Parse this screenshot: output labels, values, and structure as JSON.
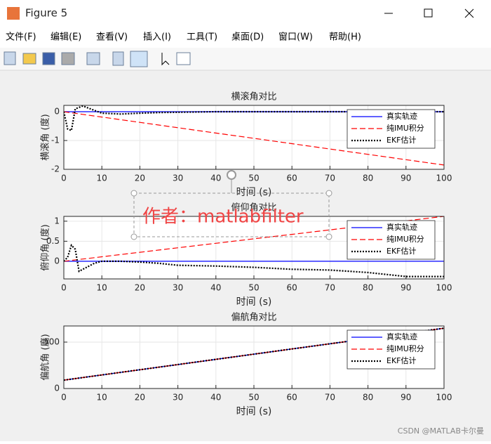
{
  "window": {
    "title": "Figure 5"
  },
  "menu": [
    "文件(F)",
    "编辑(E)",
    "查看(V)",
    "插入(I)",
    "工具(T)",
    "桌面(D)",
    "窗口(W)",
    "帮助(H)"
  ],
  "watermark": "作者：matlabfilter",
  "credit": "CSDN @MATLAB卡尔曼",
  "chart_data": [
    {
      "type": "line",
      "title": "横滚角对比",
      "xlabel": "时间 (s)",
      "ylabel": "横滚角 (度)",
      "grid": true,
      "legend": "northeast",
      "x": [
        0,
        1,
        2,
        3,
        4,
        5,
        6,
        8,
        10,
        15,
        20,
        25,
        30,
        40,
        50,
        60,
        70,
        80,
        90,
        100
      ],
      "xlim": [
        0,
        100
      ],
      "xticks": [
        0,
        10,
        20,
        30,
        40,
        50,
        60,
        70,
        80,
        90,
        100
      ],
      "ylim": [
        -2,
        0.22
      ],
      "yticks": [
        -2,
        -1,
        0
      ],
      "series": [
        {
          "name": "真实轨迹",
          "color": "#0000ff",
          "dash": "solid",
          "values": [
            0,
            0,
            0,
            0,
            0,
            0,
            0,
            0,
            0,
            0,
            0,
            0,
            0,
            0,
            0,
            0,
            0,
            0,
            0,
            0
          ]
        },
        {
          "name": "纯IMU积分",
          "color": "#ff0000",
          "dash": "dashed",
          "values": [
            0,
            -0.0185,
            -0.037,
            -0.0555,
            -0.074,
            -0.0925,
            -0.111,
            -0.148,
            -0.185,
            -0.2775,
            -0.37,
            -0.4625,
            -0.555,
            -0.74,
            -0.925,
            -1.11,
            -1.295,
            -1.48,
            -1.665,
            -1.85
          ]
        },
        {
          "name": "EKF估计",
          "color": "#000000",
          "dash": "dotted",
          "values": [
            0,
            -0.6,
            -0.65,
            0.1,
            0.15,
            0.2,
            0.15,
            0.05,
            -0.05,
            -0.08,
            -0.05,
            -0.03,
            -0.02,
            0,
            0,
            0,
            0,
            0,
            0,
            0
          ]
        }
      ]
    },
    {
      "type": "line",
      "title": "俯仰角对比",
      "xlabel": "时间 (s)",
      "ylabel": "俯仰角 (度)",
      "grid": true,
      "legend": "northeast",
      "x": [
        0,
        1,
        2,
        3,
        4,
        5,
        6,
        8,
        10,
        15,
        20,
        25,
        30,
        40,
        50,
        60,
        70,
        80,
        90,
        100
      ],
      "xlim": [
        0,
        100
      ],
      "xticks": [
        0,
        10,
        20,
        30,
        40,
        50,
        60,
        70,
        80,
        90,
        100
      ],
      "ylim": [
        -0.44,
        1.12
      ],
      "yticks": [
        0,
        0.5,
        1
      ],
      "series": [
        {
          "name": "真实轨迹",
          "color": "#0000ff",
          "dash": "solid",
          "values": [
            0,
            0,
            0,
            0,
            0,
            0,
            0,
            0,
            0,
            0,
            0,
            0,
            0,
            0,
            0,
            0,
            0,
            0,
            0,
            0
          ]
        },
        {
          "name": "纯IMU积分",
          "color": "#ff0000",
          "dash": "dashed",
          "values": [
            0,
            0.0112,
            0.0224,
            0.0336,
            0.0448,
            0.056,
            0.0672,
            0.0896,
            0.112,
            0.168,
            0.224,
            0.28,
            0.336,
            0.448,
            0.56,
            0.672,
            0.784,
            0.896,
            1.008,
            1.12
          ]
        },
        {
          "name": "EKF估计",
          "color": "#000000",
          "dash": "dotted",
          "values": [
            0,
            0.1,
            0.4,
            0.3,
            -0.25,
            -0.2,
            -0.15,
            -0.05,
            0,
            0,
            -0.02,
            -0.05,
            -0.1,
            -0.12,
            -0.15,
            -0.2,
            -0.22,
            -0.28,
            -0.38,
            -0.38
          ]
        }
      ]
    },
    {
      "type": "line",
      "title": "偏航角对比",
      "xlabel": "时间 (s)",
      "ylabel": "偏航角 (度)",
      "grid": true,
      "legend": "northeast",
      "x": [
        0,
        20,
        40,
        60,
        80,
        100
      ],
      "xlim": [
        0,
        100
      ],
      "xticks": [
        0,
        10,
        20,
        30,
        40,
        50,
        60,
        70,
        80,
        90,
        100
      ],
      "ylim": [
        0,
        674
      ],
      "yticks": [
        0,
        500
      ],
      "series": [
        {
          "name": "真实轨迹",
          "color": "#0000ff",
          "dash": "solid",
          "values": [
            90,
            202,
            314,
            426,
            538,
            650
          ]
        },
        {
          "name": "纯IMU积分",
          "color": "#ff0000",
          "dash": "dashed",
          "values": [
            90,
            202,
            314,
            426,
            538,
            650
          ]
        },
        {
          "name": "EKF估计",
          "color": "#000000",
          "dash": "dotted",
          "values": [
            90,
            202,
            314,
            426,
            538,
            650
          ]
        }
      ]
    }
  ]
}
